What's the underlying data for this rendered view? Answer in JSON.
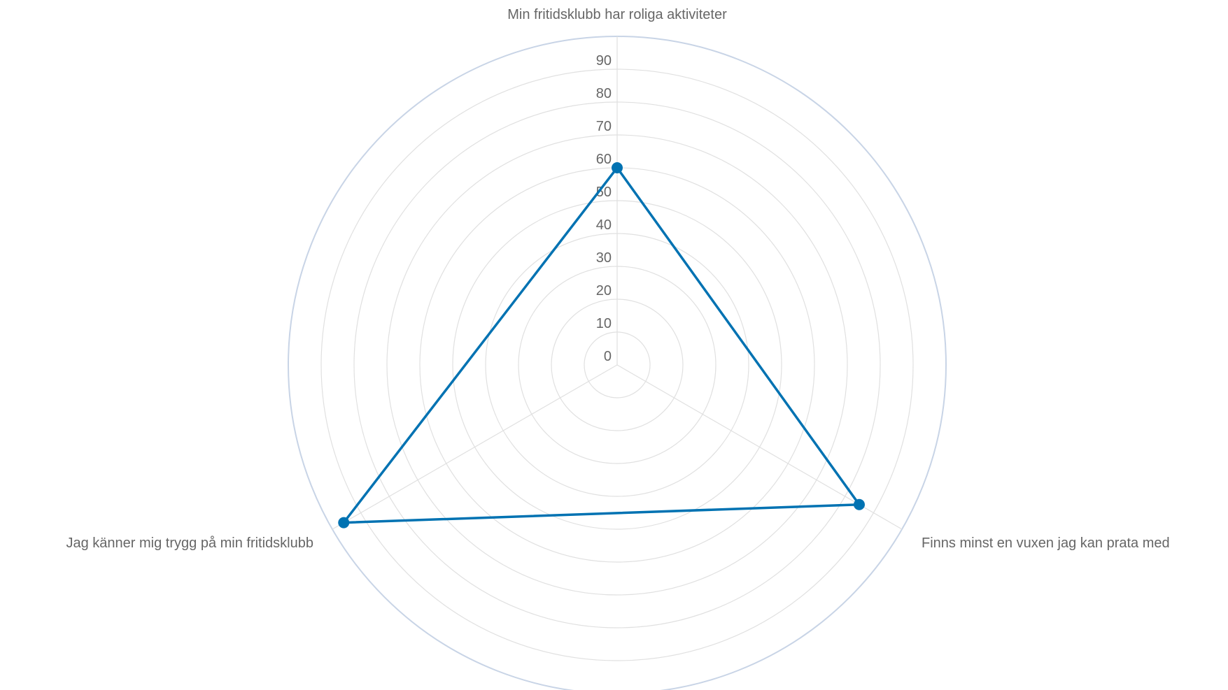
{
  "chart_data": {
    "type": "radar",
    "title": "",
    "categories": [
      "Min fritidsklubb har roliga aktiviteter",
      "Finns minst en vuxen jag kan prata med",
      "Jag känner mig trygg på min fritidsklubb"
    ],
    "series": [
      {
        "values": [
          60,
          85,
          96
        ]
      }
    ],
    "rlim": [
      0,
      100
    ],
    "ticks": [
      0,
      10,
      20,
      30,
      40,
      50,
      60,
      70,
      80,
      90
    ],
    "tick_labels": [
      "0",
      "10",
      "20",
      "30",
      "40",
      "50",
      "60",
      "70",
      "80",
      "90"
    ],
    "grid": true,
    "legend": "none"
  },
  "colors": {
    "series": "#0072b2",
    "grid": "#e0e0e0",
    "outer_ring": "#c8d4e6",
    "text": "#666666"
  }
}
